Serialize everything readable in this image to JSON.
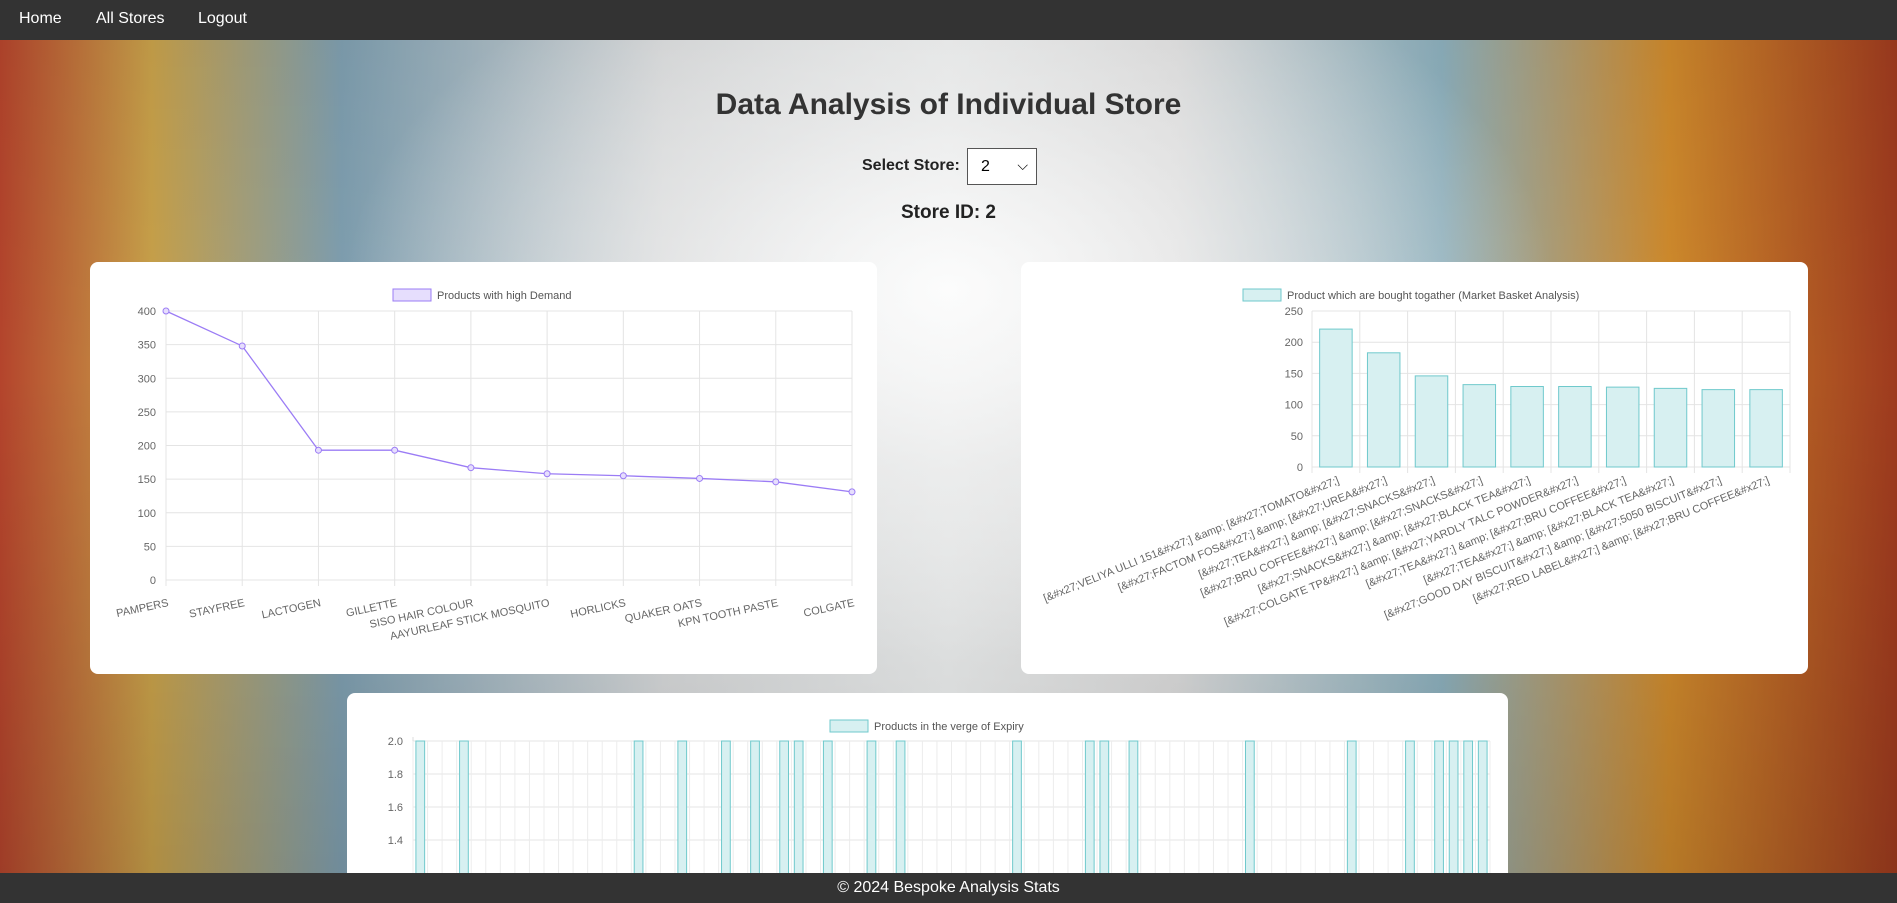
{
  "nav": {
    "items": [
      "Home",
      "All Stores",
      "Logout"
    ]
  },
  "page": {
    "title": "Data Analysis of Individual Store",
    "select_label": "Select Store:",
    "select_value": "2",
    "store_id_text": "Store ID: 2"
  },
  "footer": {
    "text": "© 2024 Bespoke Analysis Stats"
  },
  "colors": {
    "navbar": "#333333",
    "line": "#9b7cf5",
    "line_fill": "#e6defd",
    "bar_stroke": "#6fc9cc",
    "bar_fill": "#d7f0f1"
  },
  "chart_data": [
    {
      "type": "line",
      "legend": "Products with high Demand",
      "categories": [
        "PAMPERS",
        "STAYFREE",
        "LACTOGEN",
        "GILLETTE",
        "SISO HAIR COLOUR",
        "AAYURLEAF STICK MOSQUITO",
        "HORLICKS",
        "QUAKER OATS",
        "KPN TOOTH PASTE",
        "COLGATE"
      ],
      "values": [
        400,
        348,
        193,
        193,
        167,
        158,
        155,
        151,
        146,
        131
      ],
      "ylim": [
        0,
        400
      ],
      "yticks": [
        "0",
        "50",
        "100",
        "150",
        "200",
        "250",
        "300",
        "350",
        "400"
      ],
      "grid": true
    },
    {
      "type": "bar",
      "legend": "Product which are bought togather (Market Basket Analysis)",
      "categories": [
        "[&#x27;VELIYA ULLI 151&#x27;] &amp; [&#x27;TOMATO&#x27;]",
        "[&#x27;FACTOM FOS&#x27;] &amp; [&#x27;UREA&#x27;]",
        "[&#x27;TEA&#x27;] &amp; [&#x27;SNACKS&#x27;]",
        "[&#x27;BRU COFFEE&#x27;] &amp; [&#x27;SNACKS&#x27;]",
        "[&#x27;SNACKS&#x27;] &amp; [&#x27;BLACK TEA&#x27;]",
        "[&#x27;COLGATE TP&#x27;] &amp; [&#x27;YARDLY TALC POWDER&#x27;]",
        "[&#x27;TEA&#x27;] &amp; [&#x27;BRU COFFEE&#x27;]",
        "[&#x27;TEA&#x27;] &amp; [&#x27;BLACK TEA&#x27;]",
        "[&#x27;GOOD DAY BISCUIT&#x27;] &amp; [&#x27;5050 BISCUIT&#x27;]",
        "[&#x27;RED LABEL&#x27;] &amp; [&#x27;BRU COFFEE&#x27;]"
      ],
      "values": [
        221,
        183,
        146,
        132,
        129,
        129,
        128,
        126,
        124,
        124
      ],
      "ylim": [
        0,
        250
      ],
      "yticks": [
        "0",
        "50",
        "100",
        "150",
        "200",
        "250"
      ],
      "grid": true
    },
    {
      "type": "bar",
      "legend": "Products in the verge of Expiry",
      "bar_count": 74,
      "values": [
        2,
        0,
        0,
        2,
        0,
        0,
        0,
        0,
        0,
        0,
        0,
        0,
        0,
        0,
        0,
        2,
        0,
        0,
        2,
        0,
        0,
        2,
        0,
        2,
        0,
        2,
        2,
        0,
        2,
        0,
        0,
        2,
        0,
        2,
        0,
        0,
        0,
        0,
        0,
        0,
        0,
        2,
        0,
        0,
        0,
        0,
        2,
        2,
        0,
        2,
        0,
        0,
        0,
        0,
        0,
        0,
        0,
        2,
        0,
        0,
        0,
        0,
        0,
        0,
        2,
        0,
        0,
        0,
        2,
        0,
        2,
        2,
        2,
        2
      ],
      "ylim": [
        0,
        2.0
      ],
      "yticks": [
        "1.4",
        "1.6",
        "1.8",
        "2.0"
      ],
      "grid": true
    }
  ]
}
